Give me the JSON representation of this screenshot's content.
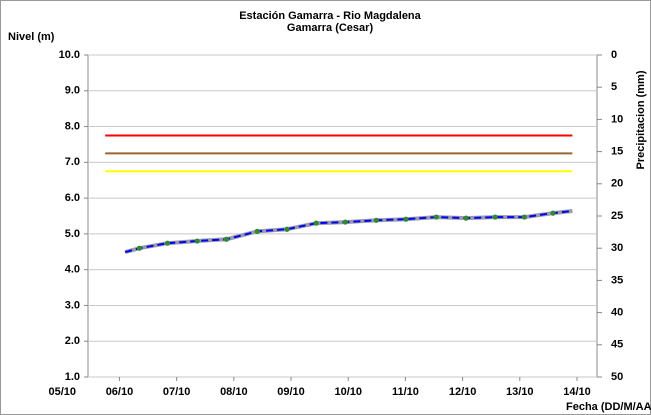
{
  "chart_data": {
    "type": "line",
    "title": "Estación Gamarra - Rio Magdalena",
    "subtitle": "Gamarra (Cesar)",
    "y_label": "Nivel (m)",
    "y2_label": "Precipitacion (mm)",
    "x_label": "Fecha (DD/M/AA",
    "xlim": [
      5.45,
      14.35
    ],
    "xticks": [
      {
        "value": 5,
        "label": "05/10"
      },
      {
        "value": 6,
        "label": "06/10"
      },
      {
        "value": 7,
        "label": "07/10"
      },
      {
        "value": 8,
        "label": "08/10"
      },
      {
        "value": 9,
        "label": "09/10"
      },
      {
        "value": 10,
        "label": "10/10"
      },
      {
        "value": 11,
        "label": "11/10"
      },
      {
        "value": 12,
        "label": "12/10"
      },
      {
        "value": 13,
        "label": "13/10"
      },
      {
        "value": 14,
        "label": "14/10"
      }
    ],
    "ylim": [
      1,
      10
    ],
    "yticks": [
      {
        "value": 1,
        "label": "1.0"
      },
      {
        "value": 2,
        "label": "2.0"
      },
      {
        "value": 3,
        "label": "3.0"
      },
      {
        "value": 4,
        "label": "4.0"
      },
      {
        "value": 5,
        "label": "5.0"
      },
      {
        "value": 6,
        "label": "6.0"
      },
      {
        "value": 7,
        "label": "7.0"
      },
      {
        "value": 8,
        "label": "8.0"
      },
      {
        "value": 9,
        "label": "9.0"
      },
      {
        "value": 10,
        "label": "10.0"
      }
    ],
    "y2lim": [
      0,
      50
    ],
    "y2_inverted": true,
    "y2ticks": [
      0,
      5,
      10,
      15,
      20,
      25,
      30,
      35,
      40,
      45,
      50
    ],
    "grid": true,
    "series": [
      {
        "color": "#ff0000",
        "style": "solid",
        "x": [
          5.75,
          13.92
        ],
        "values": [
          7.75,
          7.75
        ]
      },
      {
        "color": "#996633",
        "style": "solid",
        "x": [
          5.75,
          13.92
        ],
        "values": [
          7.25,
          7.25
        ]
      },
      {
        "color": "#ffff00",
        "style": "solid",
        "x": [
          5.75,
          13.92
        ],
        "values": [
          6.75,
          6.75
        ]
      },
      {
        "color": "#0000ff",
        "style": "dashed",
        "x": [
          6.1,
          6.35,
          6.84,
          7.36,
          7.87,
          8.41,
          8.93,
          9.44,
          9.95,
          10.49,
          11.01,
          11.54,
          12.06,
          12.57,
          13.08,
          13.58,
          13.92
        ],
        "values": [
          4.49,
          4.6,
          4.74,
          4.8,
          4.85,
          5.07,
          5.13,
          5.3,
          5.33,
          5.38,
          5.41,
          5.47,
          5.44,
          5.47,
          5.47,
          5.58,
          5.64
        ]
      },
      {
        "color": "#2e8b2e",
        "style": "markers",
        "x": [
          6.35,
          6.84,
          7.36,
          7.87,
          8.41,
          8.93,
          9.44,
          9.95,
          10.49,
          11.01,
          11.54,
          12.06,
          12.57,
          13.08,
          13.58
        ],
        "values": [
          4.6,
          4.74,
          4.8,
          4.85,
          5.07,
          5.13,
          5.3,
          5.33,
          5.38,
          5.41,
          5.47,
          5.44,
          5.47,
          5.47,
          5.58
        ]
      }
    ]
  }
}
